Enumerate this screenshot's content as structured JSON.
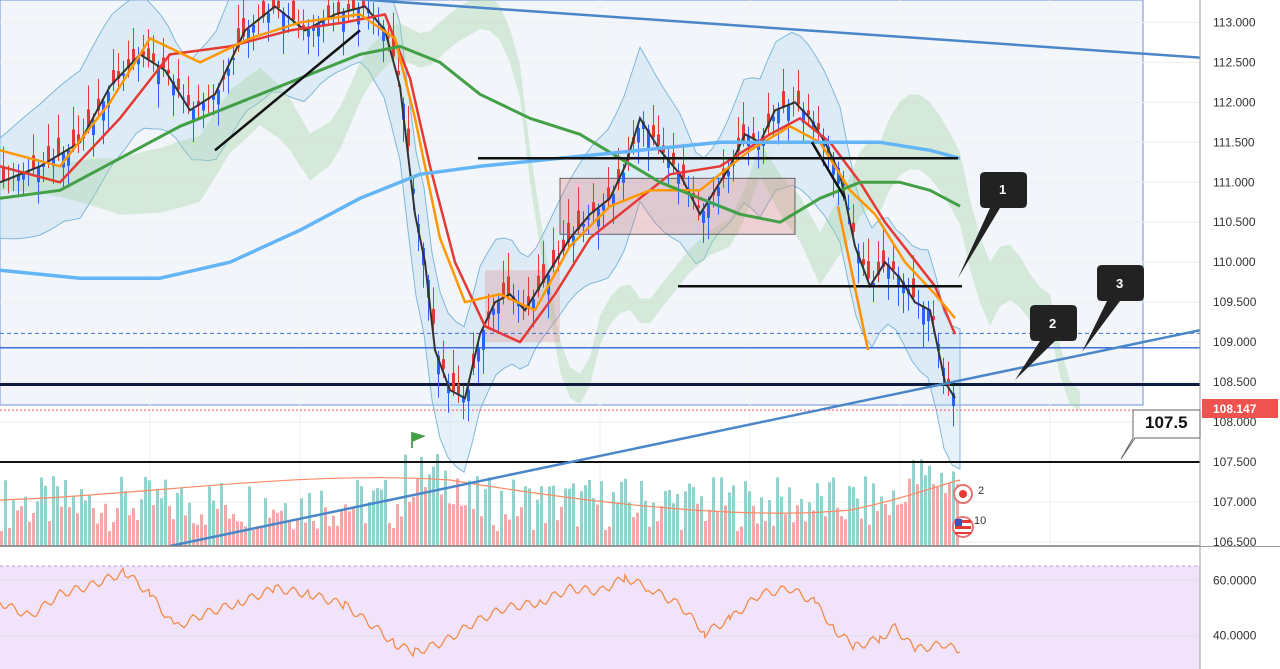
{
  "chart_data": [
    {
      "type": "candlestick",
      "panel": "price",
      "yaxis": {
        "ticks": [
          "113.000",
          "112.500",
          "112.000",
          "111.500",
          "111.000",
          "110.500",
          "110.000",
          "109.500",
          "109.000",
          "108.500",
          "108.000",
          "107.500",
          "107.000",
          "106.500"
        ],
        "range": [
          106.45,
          113.28
        ]
      },
      "last_price": "108.147",
      "target_label": "107.5",
      "horizontal_levels": [
        108.47,
        108.93,
        109.11,
        107.5,
        108.15
      ],
      "support_zone": [
        109.7,
        111.3
      ],
      "callouts": [
        "1",
        "2",
        "3"
      ],
      "close_path": [
        [
          0,
          111.0
        ],
        [
          40,
          111.2
        ],
        [
          80,
          111.5
        ],
        [
          110,
          112.2
        ],
        [
          140,
          112.6
        ],
        [
          165,
          112.4
        ],
        [
          190,
          111.9
        ],
        [
          215,
          112.1
        ],
        [
          245,
          112.9
        ],
        [
          275,
          113.2
        ],
        [
          305,
          112.9
        ],
        [
          335,
          113.1
        ],
        [
          365,
          113.2
        ],
        [
          385,
          112.9
        ],
        [
          400,
          112.2
        ],
        [
          415,
          110.6
        ],
        [
          425,
          110.0
        ],
        [
          435,
          108.9
        ],
        [
          450,
          108.4
        ],
        [
          465,
          108.3
        ],
        [
          480,
          109.1
        ],
        [
          495,
          109.5
        ],
        [
          510,
          109.6
        ],
        [
          525,
          109.4
        ],
        [
          540,
          109.7
        ],
        [
          555,
          110.0
        ],
        [
          570,
          110.3
        ],
        [
          590,
          110.6
        ],
        [
          610,
          110.8
        ],
        [
          625,
          111.2
        ],
        [
          640,
          111.8
        ],
        [
          660,
          111.4
        ],
        [
          680,
          111.1
        ],
        [
          700,
          110.6
        ],
        [
          715,
          110.9
        ],
        [
          730,
          111.2
        ],
        [
          745,
          111.6
        ],
        [
          760,
          111.5
        ],
        [
          775,
          111.9
        ],
        [
          795,
          112.0
        ],
        [
          810,
          111.8
        ],
        [
          825,
          111.5
        ],
        [
          840,
          111.1
        ],
        [
          855,
          110.2
        ],
        [
          870,
          109.7
        ],
        [
          885,
          110.0
        ],
        [
          900,
          109.8
        ],
        [
          915,
          109.5
        ],
        [
          930,
          109.4
        ],
        [
          945,
          108.5
        ],
        [
          955,
          108.3
        ]
      ],
      "moving_averages": [
        {
          "color": "#e53935",
          "points": [
            [
              0,
              111.2
            ],
            [
              60,
              111.0
            ],
            [
              120,
              111.8
            ],
            [
              170,
              112.6
            ],
            [
              230,
              112.7
            ],
            [
              290,
              112.9
            ],
            [
              345,
              113.0
            ],
            [
              385,
              113.1
            ],
            [
              410,
              112.3
            ],
            [
              430,
              111.2
            ],
            [
              455,
              110.0
            ],
            [
              485,
              109.2
            ],
            [
              520,
              109.0
            ],
            [
              555,
              109.6
            ],
            [
              590,
              110.3
            ],
            [
              630,
              110.7
            ],
            [
              670,
              111.1
            ],
            [
              720,
              111.2
            ],
            [
              770,
              111.6
            ],
            [
              800,
              111.8
            ],
            [
              830,
              111.5
            ],
            [
              860,
              111.0
            ],
            [
              885,
              110.5
            ],
            [
              910,
              110.1
            ],
            [
              935,
              109.7
            ],
            [
              955,
              109.1
            ]
          ]
        },
        {
          "color": "#ff9800",
          "points": [
            [
              0,
              111.4
            ],
            [
              60,
              111.2
            ],
            [
              110,
              112.0
            ],
            [
              150,
              112.8
            ],
            [
              200,
              112.5
            ],
            [
              250,
              112.8
            ],
            [
              300,
              113.0
            ],
            [
              360,
              113.1
            ],
            [
              395,
              112.8
            ],
            [
              415,
              111.8
            ],
            [
              440,
              110.3
            ],
            [
              465,
              109.5
            ],
            [
              500,
              109.6
            ],
            [
              535,
              109.4
            ],
            [
              570,
              110.2
            ],
            [
              610,
              110.7
            ],
            [
              650,
              110.9
            ],
            [
              700,
              110.9
            ],
            [
              750,
              111.4
            ],
            [
              790,
              111.7
            ],
            [
              820,
              111.5
            ],
            [
              850,
              110.9
            ],
            [
              875,
              110.6
            ],
            [
              905,
              110.0
            ],
            [
              935,
              109.6
            ],
            [
              955,
              109.3
            ]
          ]
        },
        {
          "color": "#43a047",
          "points": [
            [
              0,
              110.8
            ],
            [
              60,
              110.9
            ],
            [
              120,
              111.3
            ],
            [
              180,
              111.7
            ],
            [
              240,
              112.0
            ],
            [
              300,
              112.3
            ],
            [
              360,
              112.6
            ],
            [
              400,
              112.7
            ],
            [
              440,
              112.5
            ],
            [
              480,
              112.1
            ],
            [
              530,
              111.8
            ],
            [
              580,
              111.6
            ],
            [
              620,
              111.3
            ],
            [
              660,
              111.0
            ],
            [
              700,
              110.8
            ],
            [
              740,
              110.6
            ],
            [
              780,
              110.5
            ],
            [
              820,
              110.8
            ],
            [
              860,
              111.0
            ],
            [
              900,
              111.0
            ],
            [
              930,
              110.9
            ],
            [
              960,
              110.7
            ]
          ]
        },
        {
          "color": "#64b5f6",
          "points": [
            [
              0,
              109.9
            ],
            [
              80,
              109.8
            ],
            [
              160,
              109.8
            ],
            [
              230,
              110.0
            ],
            [
              300,
              110.4
            ],
            [
              360,
              110.8
            ],
            [
              420,
              111.1
            ],
            [
              480,
              111.2
            ],
            [
              560,
              111.3
            ],
            [
              640,
              111.4
            ],
            [
              720,
              111.5
            ],
            [
              800,
              111.5
            ],
            [
              880,
              111.5
            ],
            [
              930,
              111.4
            ],
            [
              960,
              111.3
            ]
          ]
        }
      ],
      "trendlines": [
        {
          "color": "#4a86c8",
          "points": [
            [
              0,
              113.6
            ],
            [
              1200,
              112.56
            ]
          ]
        },
        {
          "color": "#4a86c8",
          "points": [
            [
              170,
              106.45
            ],
            [
              1200,
              109.15
            ]
          ]
        },
        {
          "color": "#111111",
          "points": [
            [
              215,
              111.4
            ],
            [
              360,
              112.9
            ]
          ]
        },
        {
          "color": "#111111",
          "points": [
            [
              478,
              111.3
            ],
            [
              958,
              111.3
            ]
          ]
        },
        {
          "color": "#111111",
          "points": [
            [
              678,
              109.7
            ],
            [
              962,
              109.7
            ]
          ]
        },
        {
          "color": "#111111",
          "points": [
            [
              812,
              111.5
            ],
            [
              845,
              110.8
            ]
          ]
        },
        {
          "color": "#ff8f00",
          "points": [
            [
              838,
              110.7
            ],
            [
              868,
              108.9
            ]
          ]
        }
      ]
    },
    {
      "type": "bar",
      "panel": "volume",
      "bar_colors": {
        "up": "#80cbc4",
        "down": "#ef9a9a"
      },
      "event_badges": [
        "2",
        "10"
      ]
    },
    {
      "type": "line",
      "panel": "rsi",
      "yaxis": {
        "ticks": [
          "60.0000",
          "40.0000"
        ],
        "range": [
          28,
          72
        ]
      },
      "color": "#f08c4a",
      "points": [
        [
          0,
          52
        ],
        [
          30,
          47
        ],
        [
          60,
          55
        ],
        [
          90,
          58
        ],
        [
          125,
          63
        ],
        [
          150,
          55
        ],
        [
          175,
          43
        ],
        [
          205,
          48
        ],
        [
          240,
          52
        ],
        [
          275,
          57
        ],
        [
          310,
          55
        ],
        [
          345,
          51
        ],
        [
          375,
          43
        ],
        [
          395,
          37
        ],
        [
          415,
          34
        ],
        [
          445,
          38
        ],
        [
          475,
          45
        ],
        [
          505,
          50
        ],
        [
          540,
          52
        ],
        [
          570,
          57
        ],
        [
          600,
          56
        ],
        [
          625,
          61
        ],
        [
          650,
          57
        ],
        [
          680,
          51
        ],
        [
          705,
          41
        ],
        [
          730,
          46
        ],
        [
          760,
          55
        ],
        [
          790,
          57
        ],
        [
          815,
          52
        ],
        [
          835,
          42
        ],
        [
          855,
          36
        ],
        [
          880,
          39
        ],
        [
          895,
          43
        ],
        [
          915,
          35
        ],
        [
          945,
          37
        ],
        [
          960,
          34
        ]
      ]
    }
  ]
}
